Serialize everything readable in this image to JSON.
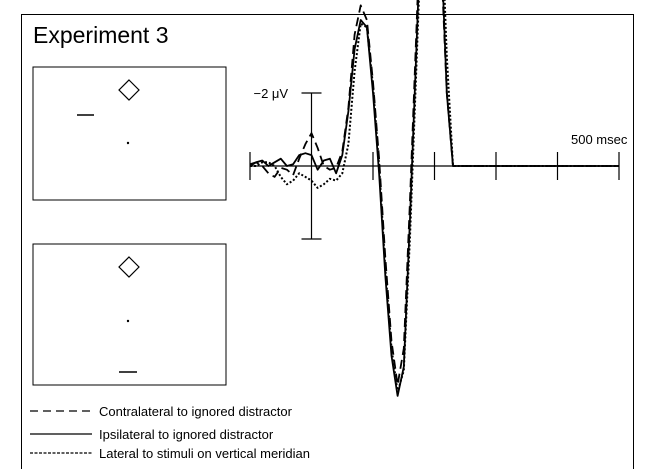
{
  "figure": {
    "title": "Experiment 3",
    "panels": [
      {
        "name": "lateral-distractor-display",
        "shapes": [
          "diamond-target",
          "fixation-dot",
          "horizontal-bar-distractor-left"
        ]
      },
      {
        "name": "vertical-meridian-display",
        "shapes": [
          "diamond-target",
          "fixation-dot",
          "horizontal-bar-bottom"
        ]
      }
    ],
    "legend": [
      {
        "label": "Contralateral to ignored distractor",
        "style": "dashed"
      },
      {
        "label": "Ipsilateral to ignored distractor",
        "style": "solid"
      },
      {
        "label": "Lateral to stimuli on vertical meridian",
        "style": "dotted"
      }
    ]
  },
  "chart_data": {
    "type": "line",
    "title": "Experiment 3",
    "y_scale_label": "−2 μV",
    "y_scale_value": -2,
    "y_unit": "μV",
    "x_end_label": "500 msec",
    "x_unit": "msec",
    "xlim": [
      -100,
      500
    ],
    "tick_interval_ms": 100,
    "negative_up": true,
    "series": [
      {
        "name": "Contralateral to ignored distractor",
        "style": "dashed",
        "x": [
          -100,
          -90,
          -80,
          -70,
          -60,
          -50,
          -40,
          -30,
          -20,
          -10,
          0,
          10,
          20,
          30,
          40,
          50,
          60,
          70,
          80,
          90,
          100,
          110,
          120,
          130,
          140,
          150,
          160,
          170,
          180,
          190,
          200,
          210,
          220,
          230,
          240,
          250,
          260,
          270,
          280,
          290,
          300,
          310,
          320,
          330,
          340,
          350,
          360,
          370,
          380,
          390,
          400,
          410,
          420,
          430,
          440,
          450,
          460,
          470,
          480,
          490,
          500
        ],
        "y": [
          0.05,
          0.1,
          0.0,
          -0.2,
          -0.3,
          -0.05,
          -0.1,
          -0.25,
          0.2,
          0.6,
          0.9,
          0.5,
          0.0,
          -0.1,
          -0.05,
          0.4,
          1.6,
          3.6,
          4.4,
          4.0,
          2.3,
          0.2,
          -2.5,
          -4.8,
          -6.0,
          -5.0,
          -1.0,
          3.5,
          8.0,
          10.5,
          10.0,
          6.0,
          2.0,
          0.0,
          0.0,
          0.0,
          0.0,
          0.0,
          0.0,
          0.0,
          0.0,
          0.0,
          0.0,
          0.0,
          0.0,
          0.0,
          0.0,
          0.0,
          0.0,
          0.0,
          0.0,
          0.0,
          0.0,
          0.0,
          0.0,
          0.0,
          0.0,
          0.0,
          0.0,
          0.0,
          0.0
        ]
      },
      {
        "name": "Ipsilateral to ignored distractor",
        "style": "solid",
        "x": [
          -100,
          -90,
          -80,
          -70,
          -60,
          -50,
          -40,
          -30,
          -20,
          -10,
          0,
          10,
          20,
          30,
          40,
          50,
          60,
          70,
          80,
          90,
          100,
          110,
          120,
          130,
          140,
          150,
          160,
          170,
          180,
          190,
          200,
          210,
          220,
          230,
          240,
          250,
          260,
          270,
          280,
          290,
          300,
          310,
          320,
          330,
          340,
          350,
          360,
          370,
          380,
          390,
          400,
          410,
          420,
          430,
          440,
          450,
          460,
          470,
          480,
          490,
          500
        ],
        "y": [
          0.0,
          0.1,
          0.15,
          0.0,
          0.1,
          0.2,
          0.0,
          0.05,
          0.3,
          0.35,
          0.3,
          -0.1,
          0.15,
          0.2,
          -0.2,
          0.3,
          1.5,
          3.2,
          4.0,
          3.8,
          2.0,
          -0.2,
          -3.0,
          -5.2,
          -6.3,
          -5.5,
          -1.5,
          3.0,
          7.5,
          10.3,
          10.1,
          6.5,
          2.0,
          0.0,
          0.0,
          0.0,
          0.0,
          0.0,
          0.0,
          0.0,
          0.0,
          0.0,
          0.0,
          0.0,
          0.0,
          0.0,
          0.0,
          0.0,
          0.0,
          0.0,
          0.0,
          0.0,
          0.0,
          0.0,
          0.0,
          0.0,
          0.0,
          0.0,
          0.0,
          0.0,
          0.0
        ]
      },
      {
        "name": "Lateral to stimuli on vertical meridian",
        "style": "dotted",
        "x": [
          -100,
          -90,
          -80,
          -70,
          -60,
          -50,
          -40,
          -30,
          -20,
          -10,
          0,
          10,
          20,
          30,
          40,
          50,
          60,
          70,
          80,
          90,
          100,
          110,
          120,
          130,
          140,
          150,
          160,
          170,
          180,
          190,
          200,
          210,
          220,
          230,
          240,
          250,
          260,
          270,
          280,
          290,
          300,
          310,
          320,
          330,
          340,
          350,
          360,
          370,
          380,
          390,
          400,
          410,
          420,
          430,
          440,
          450,
          460,
          470,
          480,
          490,
          500
        ],
        "y": [
          0.0,
          0.0,
          0.1,
          0.1,
          0.0,
          -0.3,
          -0.5,
          -0.4,
          -0.2,
          -0.3,
          -0.4,
          -0.6,
          -0.5,
          -0.35,
          -0.4,
          -0.2,
          0.6,
          2.6,
          3.9,
          3.8,
          2.2,
          0.0,
          -2.8,
          -5.0,
          -6.2,
          -5.6,
          -2.0,
          2.5,
          7.0,
          10.2,
          10.7,
          7.5,
          3.0,
          0.0,
          0.0,
          0.0,
          0.0,
          0.0,
          0.0,
          0.0,
          0.0,
          0.0,
          0.0,
          0.0,
          0.0,
          0.0,
          0.0,
          0.0,
          0.0,
          0.0,
          0.0,
          0.0,
          0.0,
          0.0,
          0.0,
          0.0,
          0.0,
          0.0,
          0.0,
          0.0,
          0.0
        ]
      }
    ]
  }
}
